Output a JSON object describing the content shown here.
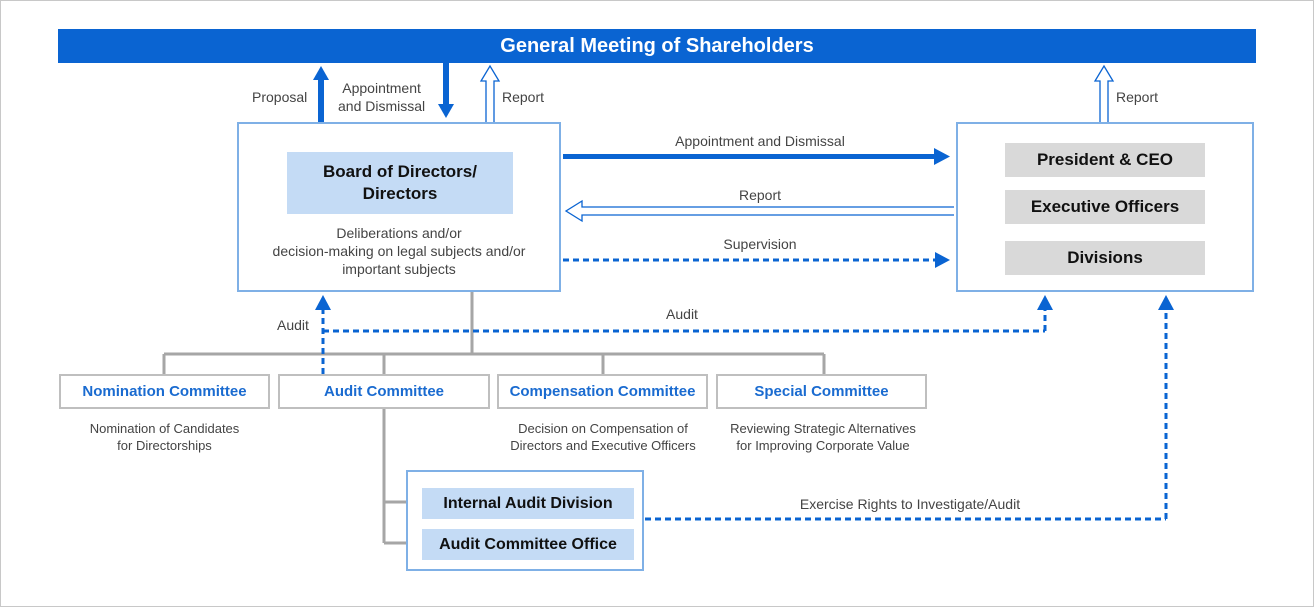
{
  "title": "General Meeting of Shareholders",
  "arrow_labels": {
    "proposal": "Proposal",
    "appointment_top": "Appointment\nand Dismissal",
    "report_left": "Report",
    "report_right": "Report",
    "appointment_exec": "Appointment and Dismissal",
    "report_exec": "Report",
    "supervision": "Supervision",
    "audit_left": "Audit",
    "audit_mid": "Audit",
    "investigate": "Exercise Rights to Investigate/Audit"
  },
  "board": {
    "title": "Board of Directors/\nDirectors",
    "description": "Deliberations and/or\ndecision-making on legal subjects and/or\nimportant subjects"
  },
  "executive": {
    "items": [
      "President & CEO",
      "Executive Officers",
      "Divisions"
    ]
  },
  "committees": [
    {
      "name": "Nomination Committee",
      "description": "Nomination of Candidates\nfor Directorships"
    },
    {
      "name": "Audit Committee",
      "description": ""
    },
    {
      "name": "Compensation Committee",
      "description": "Decision on Compensation of\nDirectors and Executive Officers"
    },
    {
      "name": "Special Committee",
      "description": "Reviewing Strategic Alternatives\nfor Improving Corporate Value"
    }
  ],
  "audit_units": [
    "Internal Audit Division",
    "Audit Committee Office"
  ],
  "colors": {
    "primary": "#0a64d2",
    "light_blue": "#c4dbf5",
    "border_blue": "#7fb0e6",
    "committee_text": "#1a6bd0",
    "gray_line": "#a6a6a6",
    "gray_box": "#d9d9d9"
  }
}
